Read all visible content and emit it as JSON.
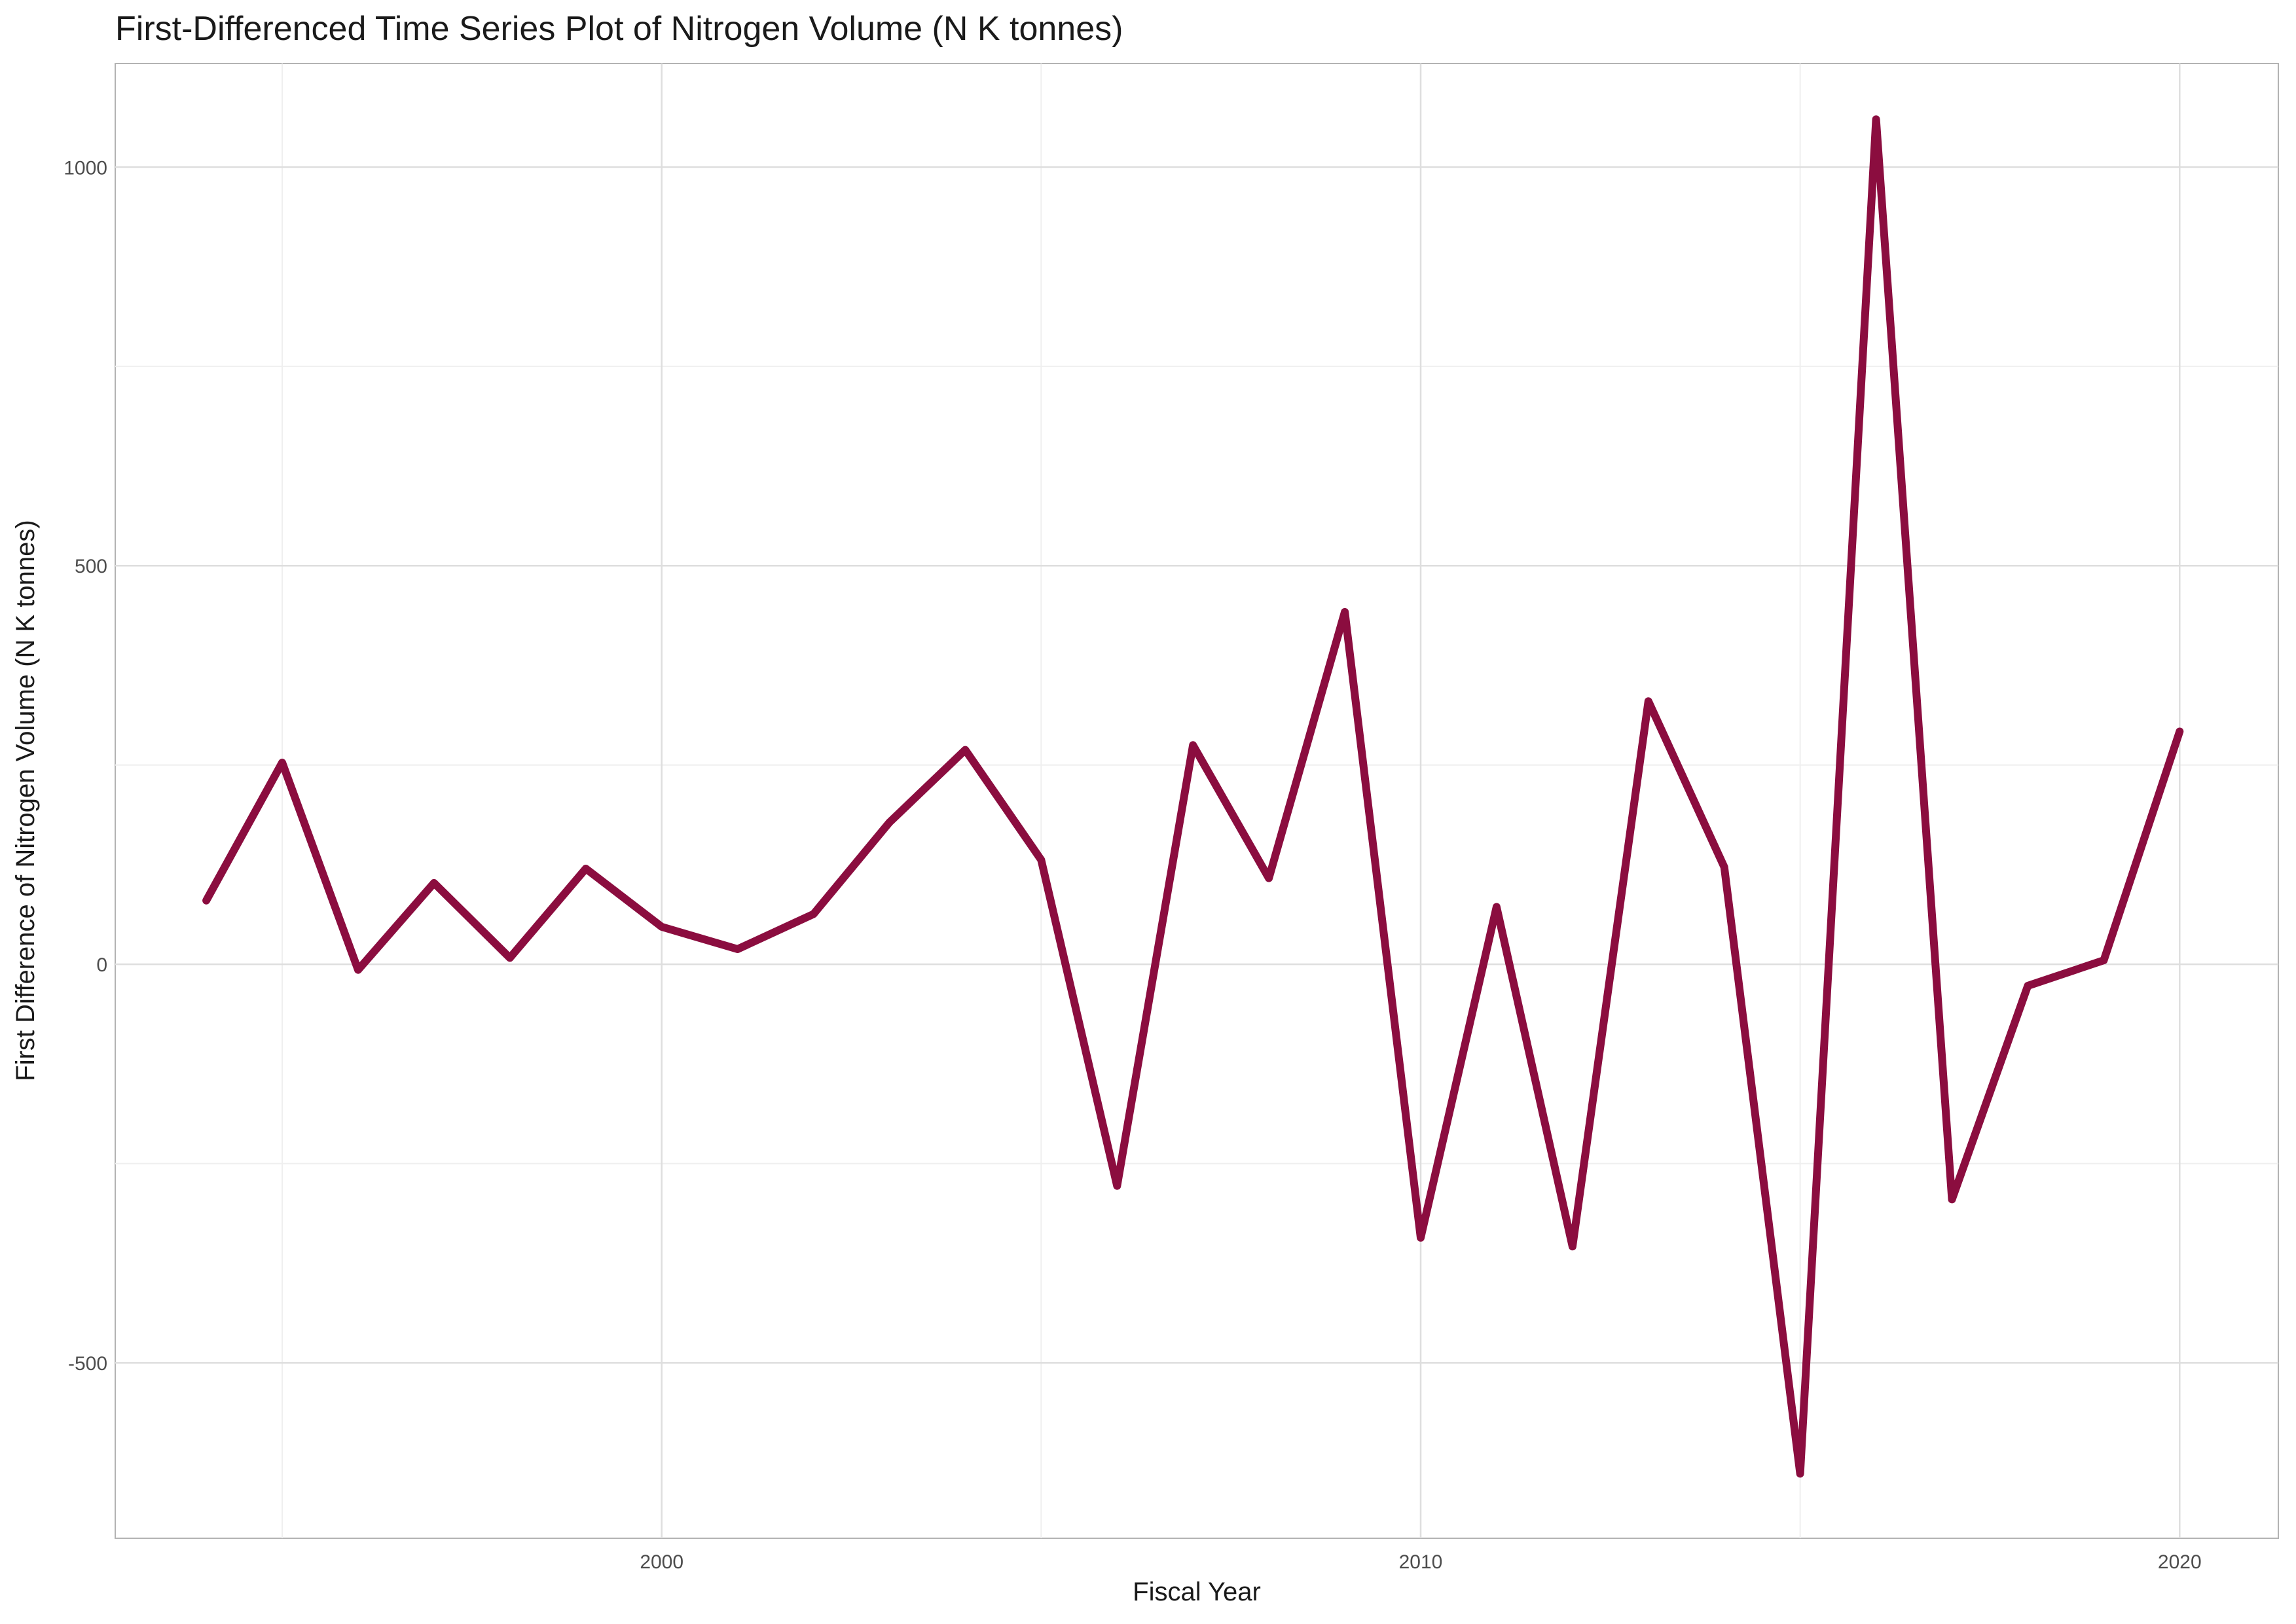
{
  "chart_data": {
    "type": "line",
    "title": "First-Differenced Time Series Plot of Nitrogen Volume (N K tonnes)",
    "xlabel": "Fiscal Year",
    "ylabel": "First Difference of Nitrogen Volume (N K tonnes)",
    "x_ticks": [
      2000,
      2010,
      2020
    ],
    "y_ticks": [
      -500,
      0,
      500,
      1000
    ],
    "x_tick_labels": [
      "2000",
      "2010",
      "2020"
    ],
    "y_tick_labels": [
      "-500",
      "0",
      "500",
      "1000"
    ],
    "xlim": [
      1992.8,
      2021.3
    ],
    "ylim": [
      -720,
      1130
    ],
    "grid": true,
    "line_color": "#8B0D3F",
    "series": [
      {
        "x": [
          1994,
          1995,
          1996,
          1997,
          1998,
          1999,
          2000,
          2001,
          2002,
          2003,
          2004,
          2005,
          2006,
          2007,
          2008,
          2009,
          2010,
          2011,
          2012,
          2013,
          2014,
          2015,
          2016,
          2017,
          2018,
          2019,
          2020
        ],
        "y": [
          80,
          253,
          -7,
          102,
          8,
          120,
          47,
          19,
          63,
          178,
          269,
          131,
          -278,
          275,
          108,
          442,
          -343,
          72,
          -354,
          330,
          122,
          -639,
          1060,
          -295,
          -27,
          5,
          292
        ]
      }
    ]
  }
}
